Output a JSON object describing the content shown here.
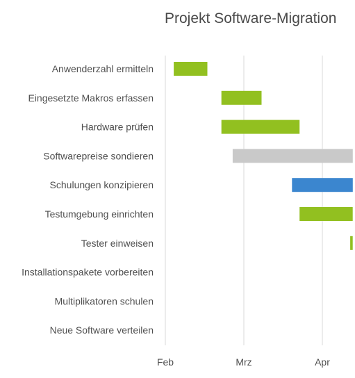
{
  "chart_data": {
    "type": "gantt",
    "title": "Projekt Software-Migration",
    "x_axis": {
      "ticks": [
        "Feb",
        "Mrz",
        "Apr"
      ],
      "tick_dates": [
        "2019-02-01",
        "2019-03-01",
        "2019-04-01"
      ]
    },
    "grid": true,
    "colors": {
      "default": "#92c020",
      "gray": "#c9c9c9",
      "blue": "#3b86cf"
    },
    "tasks": [
      {
        "label": "Anwenderzahl ermitteln",
        "start": "2019-02-04",
        "end": "2019-02-16",
        "color": "default"
      },
      {
        "label": "Eingesetzte Makros erfassen",
        "start": "2019-02-21",
        "end": "2019-03-08",
        "color": "default"
      },
      {
        "label": "Hardware prüfen",
        "start": "2019-02-21",
        "end": "2019-03-23",
        "color": "default"
      },
      {
        "label": "Softwarepreise sondieren",
        "start": "2019-02-25",
        "end": "2019-04-13",
        "color": "gray"
      },
      {
        "label": "Schulungen konzipieren",
        "start": "2019-03-20",
        "end": "2019-04-13",
        "color": "blue"
      },
      {
        "label": "Testumgebung einrichten",
        "start": "2019-03-23",
        "end": "2019-04-13",
        "color": "default"
      },
      {
        "label": "Tester einweisen",
        "start": "2019-04-12",
        "end": "2019-04-13",
        "color": "default"
      },
      {
        "label": "Installationspakete vorbereiten",
        "start": null,
        "end": null,
        "color": "default"
      },
      {
        "label": "Multiplikatoren schulen",
        "start": null,
        "end": null,
        "color": "default"
      },
      {
        "label": "Neue Software verteilen",
        "start": null,
        "end": null,
        "color": "default"
      }
    ]
  }
}
